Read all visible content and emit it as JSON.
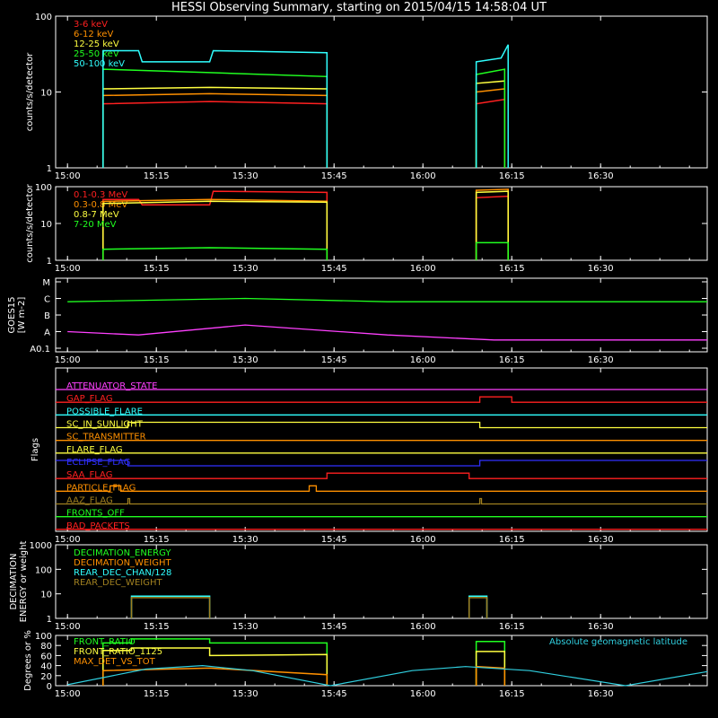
{
  "title": "HESSI Observing Summary, starting on 2015/04/15 14:58:04 UT",
  "chart_data": [
    {
      "type": "line",
      "panel": "low-energy-rates",
      "ylabel": "counts/s/detector",
      "yscale": "log",
      "ylim": [
        1,
        100
      ],
      "yticks": [
        "1",
        "10",
        "100"
      ],
      "xticks": [
        "15:00",
        "15:15",
        "15:30",
        "15:45",
        "16:00",
        "16:15",
        "16:30"
      ],
      "series": [
        {
          "name": "3-6 keV",
          "color": "#ff2020",
          "segments": [
            [
              [
                15.1,
                7
              ],
              [
                15.4,
                7.5
              ],
              [
                15.73,
                7
              ]
            ],
            [
              [
                16.15,
                7
              ],
              [
                16.23,
                8
              ]
            ]
          ]
        },
        {
          "name": "6-12 keV",
          "color": "#ff9000",
          "segments": [
            [
              [
                15.1,
                9
              ],
              [
                15.4,
                9.5
              ],
              [
                15.73,
                9
              ]
            ],
            [
              [
                16.15,
                10
              ],
              [
                16.23,
                11
              ]
            ]
          ]
        },
        {
          "name": "12-25 keV",
          "color": "#ffff40",
          "segments": [
            [
              [
                15.1,
                11
              ],
              [
                15.4,
                11.5
              ],
              [
                15.73,
                11
              ]
            ],
            [
              [
                16.15,
                13
              ],
              [
                16.23,
                14
              ]
            ]
          ]
        },
        {
          "name": "25-50 keV",
          "color": "#20ff20",
          "segments": [
            [
              [
                15.1,
                20
              ],
              [
                15.4,
                18
              ],
              [
                15.73,
                16
              ]
            ],
            [
              [
                16.15,
                17
              ],
              [
                16.23,
                20
              ]
            ]
          ]
        },
        {
          "name": "50-100 keV",
          "color": "#30ffff",
          "segments": [
            [
              [
                15.1,
                35
              ],
              [
                15.2,
                35
              ],
              [
                15.21,
                25
              ],
              [
                15.4,
                25
              ],
              [
                15.41,
                35
              ],
              [
                15.73,
                33
              ]
            ],
            [
              [
                16.15,
                25
              ],
              [
                16.22,
                28
              ],
              [
                16.24,
                42
              ]
            ]
          ]
        }
      ]
    },
    {
      "type": "line",
      "panel": "high-energy-rates",
      "ylabel": "counts/s/detector",
      "yscale": "log",
      "ylim": [
        1,
        100
      ],
      "yticks": [
        "1",
        "10",
        "100"
      ],
      "xticks": [
        "15:00",
        "15:15",
        "15:30",
        "15:45",
        "16:00",
        "16:15",
        "16:30"
      ],
      "series": [
        {
          "name": "0.1-0.3 MeV",
          "color": "#ff2020",
          "segments": [
            [
              [
                15.1,
                45
              ],
              [
                15.2,
                45
              ],
              [
                15.21,
                32
              ],
              [
                15.4,
                32
              ],
              [
                15.41,
                75
              ],
              [
                15.73,
                70
              ]
            ],
            [
              [
                16.15,
                50
              ],
              [
                16.24,
                55
              ]
            ]
          ]
        },
        {
          "name": "0.3-0.8 MeV",
          "color": "#ff9000",
          "segments": [
            [
              [
                15.1,
                40
              ],
              [
                15.4,
                45
              ],
              [
                15.73,
                40
              ]
            ],
            [
              [
                16.15,
                80
              ],
              [
                16.24,
                85
              ]
            ]
          ]
        },
        {
          "name": "0.8-7 MeV",
          "color": "#ffff40",
          "segments": [
            [
              [
                15.1,
                35
              ],
              [
                15.4,
                40
              ],
              [
                15.73,
                38
              ]
            ],
            [
              [
                16.15,
                70
              ],
              [
                16.24,
                75
              ]
            ]
          ]
        },
        {
          "name": "7-20 MeV",
          "color": "#20ff20",
          "segments": [
            [
              [
                15.1,
                2
              ],
              [
                15.4,
                2.2
              ],
              [
                15.73,
                2
              ]
            ],
            [
              [
                16.15,
                3
              ],
              [
                16.24,
                3
              ]
            ]
          ]
        }
      ]
    },
    {
      "type": "line",
      "panel": "goes",
      "ylabel": "GOES15 [W m-2]",
      "ylabel_lines": [
        "GOES15",
        "[W m-2]"
      ],
      "class_ticks": [
        "A0.1",
        "A",
        "B",
        "C",
        "M"
      ],
      "xticks": [
        "15:00",
        "15:15",
        "15:30",
        "15:45",
        "16:00",
        "16:15",
        "16:30"
      ],
      "series": [
        {
          "name": "",
          "color": "#20ff20",
          "level_points": [
            [
              15.0,
              2.8
            ],
            [
              15.5,
              3.0
            ],
            [
              15.9,
              2.8
            ],
            [
              16.8,
              2.8
            ]
          ]
        },
        {
          "name": "",
          "color": "#ff40ff",
          "level_points": [
            [
              15.0,
              1.0
            ],
            [
              15.2,
              0.8
            ],
            [
              15.5,
              1.4
            ],
            [
              15.9,
              0.8
            ],
            [
              16.2,
              0.5
            ],
            [
              16.8,
              0.5
            ]
          ]
        }
      ]
    },
    {
      "type": "flags",
      "panel": "flags",
      "ylabel": "Flags",
      "xticks": [
        "15:00",
        "15:15",
        "15:30",
        "15:45",
        "16:00",
        "16:15",
        "16:30"
      ],
      "flags": [
        {
          "name": "ATTENUATOR_STATE",
          "color": "#ff40ff",
          "transitions": [
            [
              15.0,
              0
            ]
          ]
        },
        {
          "name": "GAP_FLAG",
          "color": "#ff2020",
          "transitions": [
            [
              15.0,
              0
            ],
            [
              16.16,
              1
            ],
            [
              16.25,
              0
            ]
          ]
        },
        {
          "name": "POSSIBLE_FLARE",
          "color": "#30ffff",
          "transitions": [
            [
              15.0,
              0
            ]
          ]
        },
        {
          "name": "SC_IN_SUNLIGHT",
          "color": "#ffff40",
          "transitions": [
            [
              15.0,
              0
            ],
            [
              15.17,
              1
            ],
            [
              16.16,
              0
            ]
          ]
        },
        {
          "name": "SC_TRANSMITTER",
          "color": "#ff9000",
          "transitions": [
            [
              15.0,
              0
            ]
          ]
        },
        {
          "name": "FLARE_FLAG",
          "color": "#ffff40",
          "transitions": [
            [
              15.0,
              0
            ]
          ]
        },
        {
          "name": "ECLIPSE_FLAG",
          "color": "#3030ff",
          "transitions": [
            [
              15.0,
              1
            ],
            [
              15.17,
              0
            ],
            [
              16.16,
              1
            ]
          ]
        },
        {
          "name": "SAA_FLAG",
          "color": "#ff2020",
          "transitions": [
            [
              15.0,
              0
            ],
            [
              15.73,
              1
            ],
            [
              16.13,
              0
            ]
          ]
        },
        {
          "name": "PARTICLE_FLAG",
          "color": "#ff9000",
          "transitions": [
            [
              15.0,
              0
            ],
            [
              15.12,
              1
            ],
            [
              15.15,
              0
            ],
            [
              15.68,
              1
            ],
            [
              15.7,
              0
            ],
            [
              16.25,
              0
            ]
          ]
        },
        {
          "name": "AAZ_FLAG",
          "color": "#a08020",
          "transitions": [
            [
              15.0,
              0
            ],
            [
              15.17,
              1
            ],
            [
              15.175,
              0
            ],
            [
              16.16,
              1
            ],
            [
              16.165,
              0
            ]
          ]
        },
        {
          "name": "FRONTS_OFF",
          "color": "#20ff20",
          "transitions": [
            [
              15.0,
              0
            ]
          ]
        },
        {
          "name": "BAD_PACKETS",
          "color": "#ff2020",
          "transitions": [
            [
              15.0,
              0
            ]
          ]
        }
      ]
    },
    {
      "type": "line",
      "panel": "decimation",
      "ylabel_lines": [
        "DECIMATION",
        "ENERGY or weight"
      ],
      "yscale": "log",
      "ylim": [
        1,
        1000
      ],
      "yticks": [
        "1",
        "10",
        "100",
        "1000"
      ],
      "xticks": [
        "15:00",
        "15:15",
        "15:30",
        "15:45",
        "16:00",
        "16:15",
        "16:30"
      ],
      "series": [
        {
          "name": "DECIMATION_ENERGY",
          "color": "#20ff20",
          "segments": []
        },
        {
          "name": "DECIMATION_WEIGHT",
          "color": "#ff9000",
          "segments": []
        },
        {
          "name": "REAR_DEC_CHAN/128",
          "color": "#30ffff",
          "segments": [
            [
              [
                15.18,
                1
              ],
              [
                15.18,
                8
              ],
              [
                15.4,
                8
              ],
              [
                15.4,
                1
              ]
            ],
            [
              [
                16.13,
                1
              ],
              [
                16.13,
                8
              ],
              [
                16.18,
                8
              ],
              [
                16.18,
                1
              ]
            ]
          ]
        },
        {
          "name": "REAR_DEC_WEIGHT",
          "color": "#a08020",
          "segments": [
            [
              [
                15.18,
                1
              ],
              [
                15.18,
                7
              ],
              [
                15.4,
                7
              ],
              [
                15.4,
                1
              ]
            ],
            [
              [
                16.13,
                1
              ],
              [
                16.13,
                7
              ],
              [
                16.18,
                7
              ],
              [
                16.18,
                1
              ]
            ]
          ]
        }
      ]
    },
    {
      "type": "line",
      "panel": "ratios",
      "ylabel": "Degrees or %",
      "ylim": [
        0,
        100
      ],
      "yticks": [
        "0",
        "20",
        "40",
        "60",
        "80",
        "100"
      ],
      "xticks": [
        "15:00",
        "15:15",
        "15:30",
        "15:45",
        "16:00",
        "16:15",
        "16:30"
      ],
      "annotation": "Absolute geomagnetic latitude",
      "series": [
        {
          "name": "FRONT_RATIO",
          "color": "#20ff20",
          "segments": [
            [
              [
                15.1,
                85
              ],
              [
                15.18,
                85
              ],
              [
                15.18,
                93
              ],
              [
                15.4,
                93
              ],
              [
                15.4,
                85
              ],
              [
                15.73,
                85
              ]
            ],
            [
              [
                16.15,
                88
              ],
              [
                16.23,
                88
              ]
            ]
          ]
        },
        {
          "name": "FRONT_RATIO_1125",
          "color": "#ffff40",
          "segments": [
            [
              [
                15.1,
                70
              ],
              [
                15.18,
                70
              ],
              [
                15.18,
                75
              ],
              [
                15.4,
                75
              ],
              [
                15.4,
                60
              ],
              [
                15.73,
                62
              ]
            ],
            [
              [
                16.15,
                68
              ],
              [
                16.23,
                68
              ]
            ]
          ]
        },
        {
          "name": "MAX_DET_VS_TOT",
          "color": "#ff9000",
          "segments": [
            [
              [
                15.1,
                30
              ],
              [
                15.4,
                35
              ],
              [
                15.73,
                22
              ]
            ],
            [
              [
                16.15,
                38
              ],
              [
                16.23,
                35
              ]
            ]
          ]
        },
        {
          "name": "",
          "color": "#30d0e0",
          "points": [
            [
              15.0,
              2
            ],
            [
              15.22,
              33
            ],
            [
              15.38,
              40
            ],
            [
              15.52,
              30
            ],
            [
              15.74,
              0
            ],
            [
              15.97,
              30
            ],
            [
              16.12,
              38
            ],
            [
              16.3,
              30
            ],
            [
              16.57,
              0
            ],
            [
              16.8,
              28
            ]
          ]
        }
      ]
    }
  ]
}
